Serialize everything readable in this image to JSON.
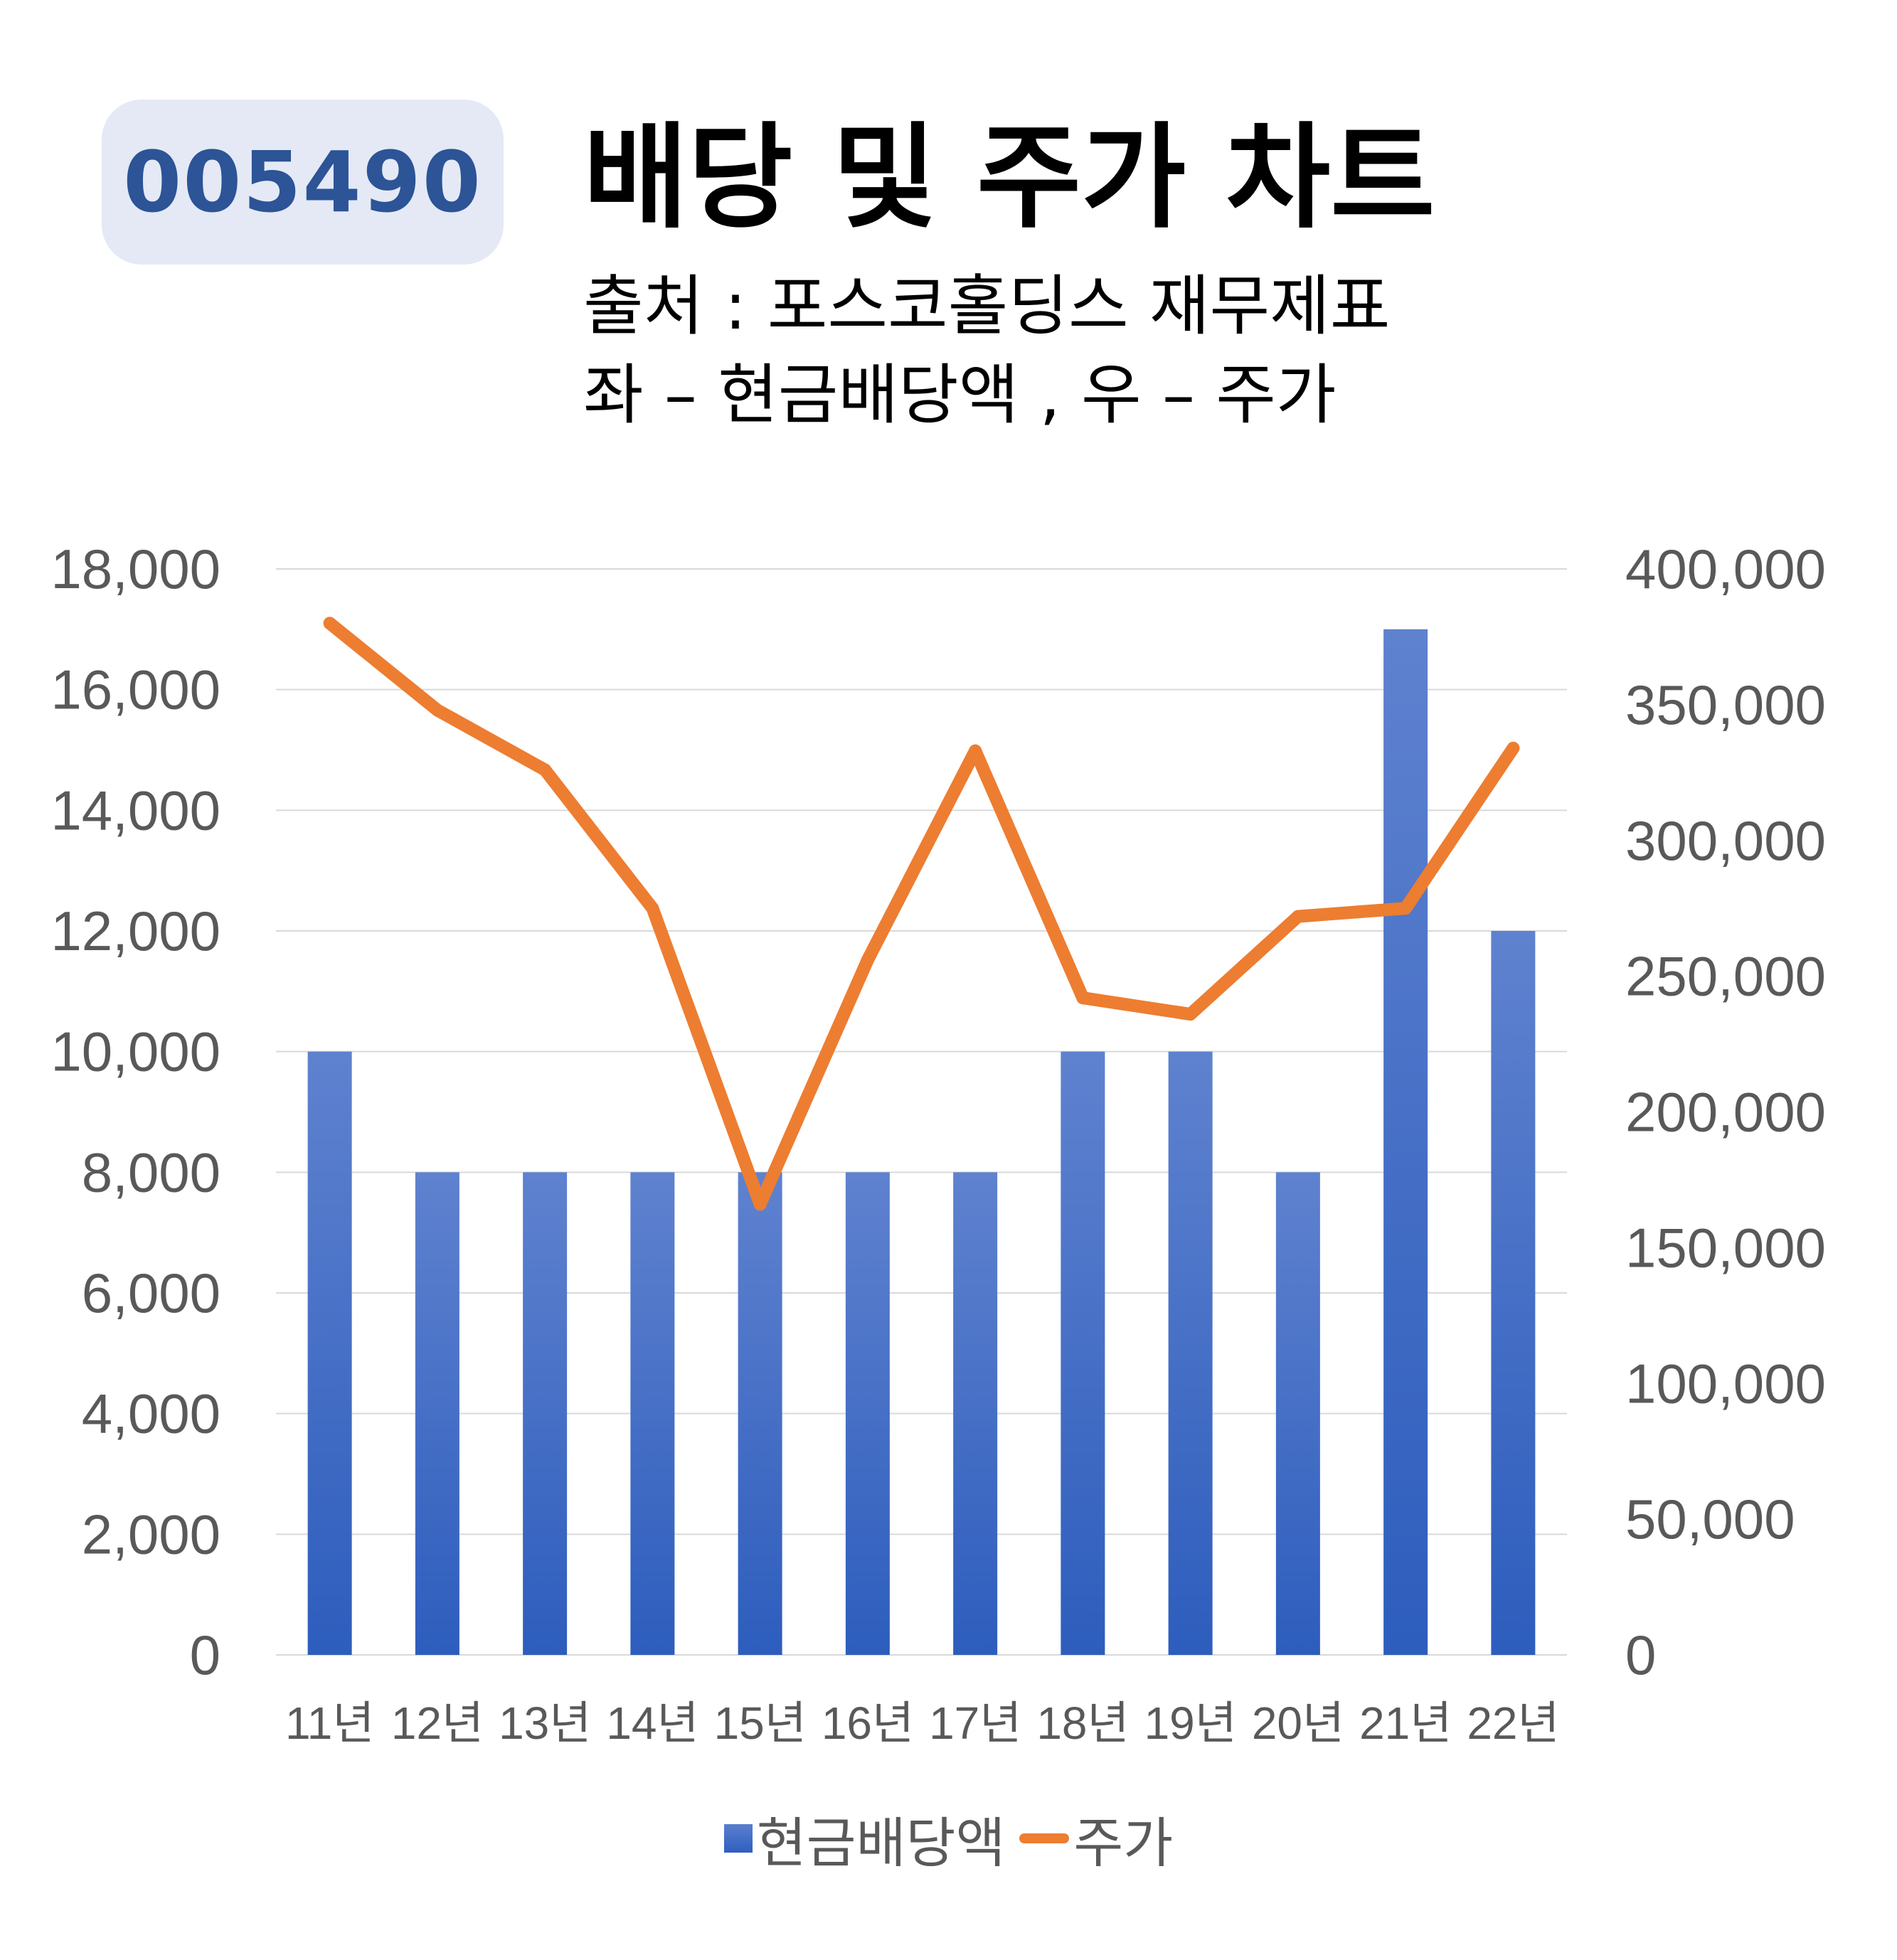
{
  "header": {
    "code": "005490",
    "title": "배당 및 주가 차트",
    "source": "출처 : 포스코홀딩스 재무제표",
    "axis_note": "좌 – 현금배당액 , 우 – 주가"
  },
  "colors": {
    "bar": "#3a68c6",
    "line": "#ed7d31",
    "grid": "#d9d9d9",
    "tick": "#595959"
  },
  "chart_data": {
    "type": "bar",
    "categories": [
      "11년",
      "12년",
      "13년",
      "14년",
      "15년",
      "16년",
      "17년",
      "18년",
      "19년",
      "20년",
      "21년",
      "22년"
    ],
    "series": [
      {
        "name": "현금배당액",
        "type": "bar",
        "axis": "left",
        "values": [
          10000,
          8000,
          8000,
          8000,
          8000,
          8000,
          8000,
          10000,
          10000,
          8000,
          17000,
          12000
        ]
      },
      {
        "name": "주가",
        "type": "line",
        "axis": "right",
        "values": [
          380000,
          348000,
          326000,
          275000,
          166000,
          256000,
          333000,
          242000,
          236000,
          272000,
          275000,
          334000
        ]
      }
    ],
    "yleft": {
      "min": 0,
      "max": 18000,
      "step": 2000,
      "ticks": [
        "0",
        "2,000",
        "4,000",
        "6,000",
        "8,000",
        "10,000",
        "12,000",
        "14,000",
        "16,000",
        "18,000"
      ]
    },
    "yright": {
      "min": 0,
      "max": 400000,
      "step": 50000,
      "ticks": [
        "0",
        "50,000",
        "100,000",
        "150,000",
        "200,000",
        "250,000",
        "300,000",
        "350,000",
        "400,000"
      ]
    },
    "grid": true,
    "legend_position": "bottom"
  }
}
